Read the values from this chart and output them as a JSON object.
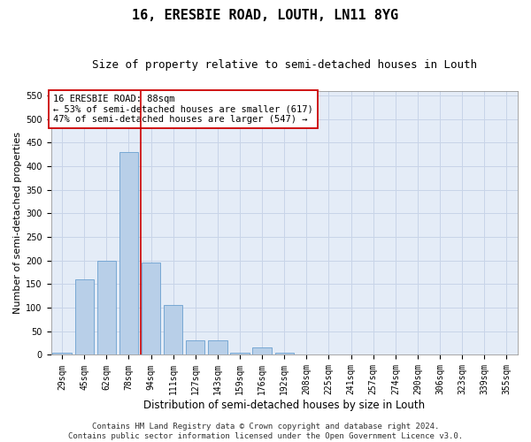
{
  "title": "16, ERESBIE ROAD, LOUTH, LN11 8YG",
  "subtitle": "Size of property relative to semi-detached houses in Louth",
  "xlabel": "Distribution of semi-detached houses by size in Louth",
  "ylabel": "Number of semi-detached properties",
  "bar_labels": [
    "29sqm",
    "45sqm",
    "62sqm",
    "78sqm",
    "94sqm",
    "111sqm",
    "127sqm",
    "143sqm",
    "159sqm",
    "176sqm",
    "192sqm",
    "208sqm",
    "225sqm",
    "241sqm",
    "257sqm",
    "274sqm",
    "290sqm",
    "306sqm",
    "323sqm",
    "339sqm",
    "355sqm"
  ],
  "bar_values": [
    5,
    160,
    200,
    430,
    195,
    105,
    30,
    30,
    5,
    15,
    5,
    0,
    0,
    0,
    0,
    0,
    0,
    0,
    0,
    0,
    0
  ],
  "bar_color": "#b8cfe8",
  "bar_edgecolor": "#6a9fcf",
  "bar_linewidth": 0.6,
  "grid_color": "#c8d4e8",
  "bg_color": "#e4ecf7",
  "vline_x": 3.55,
  "vline_color": "#cc0000",
  "ylim": [
    0,
    560
  ],
  "yticks": [
    0,
    50,
    100,
    150,
    200,
    250,
    300,
    350,
    400,
    450,
    500,
    550
  ],
  "annotation_text": "16 ERESBIE ROAD: 88sqm\n← 53% of semi-detached houses are smaller (617)\n47% of semi-detached houses are larger (547) →",
  "footer_text": "Contains HM Land Registry data © Crown copyright and database right 2024.\nContains public sector information licensed under the Open Government Licence v3.0.",
  "title_fontsize": 11,
  "subtitle_fontsize": 9,
  "xlabel_fontsize": 8.5,
  "ylabel_fontsize": 8,
  "tick_fontsize": 7,
  "annotation_fontsize": 7.5,
  "footer_fontsize": 6.5
}
